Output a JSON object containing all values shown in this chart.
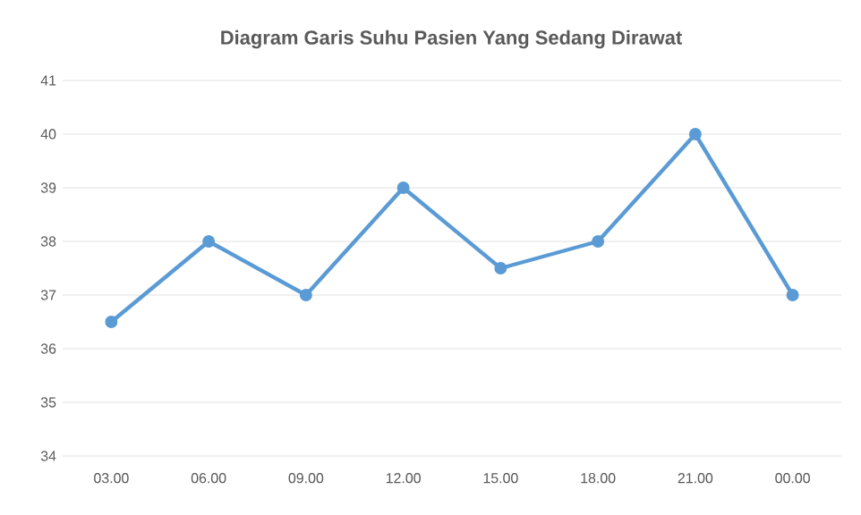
{
  "chart_data": {
    "type": "line",
    "title": "Diagram Garis Suhu Pasien Yang Sedang  Dirawat",
    "categories": [
      "03.00",
      "06.00",
      "09.00",
      "12.00",
      "15.00",
      "18.00",
      "21.00",
      "00.00"
    ],
    "series": [
      {
        "color": "#5b9bd5",
        "values": [
          36.5,
          38,
          37,
          39,
          37.5,
          38,
          40,
          37
        ]
      }
    ],
    "ylim": [
      34,
      41
    ],
    "yticks": [
      34,
      35,
      36,
      37,
      38,
      39,
      40,
      41
    ],
    "grid": "y",
    "marker": "circle",
    "line_style": "solid"
  }
}
